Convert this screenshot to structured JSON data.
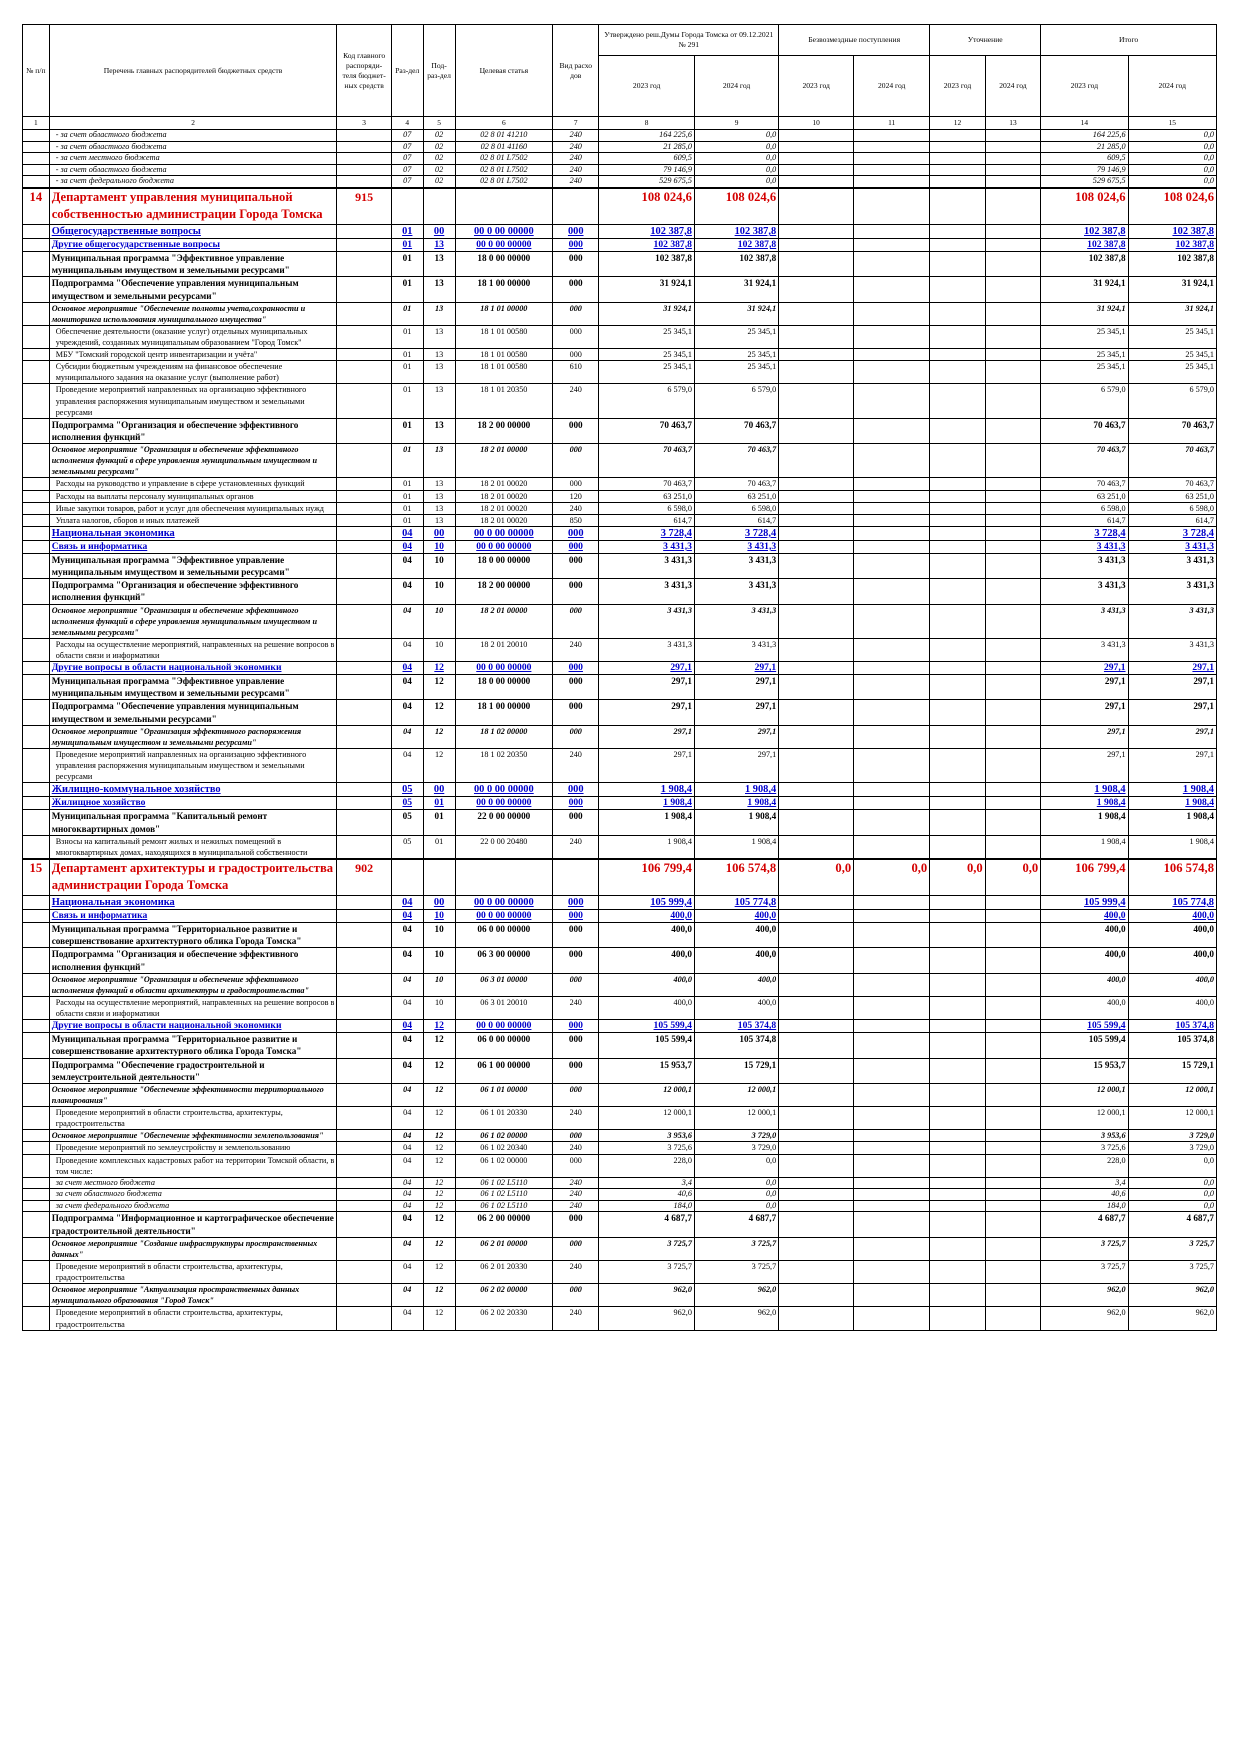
{
  "header": {
    "num": "№ п/п",
    "name": "Перечень главных распорядителей бюджетных средств",
    "grbs": "Код главного распоряди-теля бюджет-ных средств",
    "razdel": "Раз-дел",
    "podrazdel": "Под-раз-дел",
    "csr": "Целевая статья",
    "vr": "Вид расхо дов",
    "group_approved": "Утверждено реш.Думы Города Томска от 09.12.2021 № 291",
    "group_free": "Безвозмездные поступления",
    "group_refine": "Уточнение",
    "group_total": "Итого",
    "year_2023": "2023 год",
    "year_2024": "2024 год",
    "colnums": [
      "1",
      "2",
      "3",
      "4",
      "5",
      "6",
      "7",
      "8",
      "9",
      "10",
      "11",
      "12",
      "13",
      "14",
      "15"
    ]
  },
  "rows": [
    {
      "lvl": "src",
      "name": "- за счет областного бюджета",
      "rz": "07",
      "pr": "02",
      "csr": "02 8 01 41210",
      "vr": "240",
      "a23": "164 225,6",
      "a24": "0,0",
      "t23": "164 225,6",
      "t24": "0,0"
    },
    {
      "lvl": "src",
      "name": "- за счет областного бюджета",
      "rz": "07",
      "pr": "02",
      "csr": "02 8 01 41160",
      "vr": "240",
      "a23": "21 285,0",
      "a24": "0,0",
      "t23": "21 285,0",
      "t24": "0,0"
    },
    {
      "lvl": "src",
      "name": "- за счет местного бюджета",
      "rz": "07",
      "pr": "02",
      "csr": "02 8 01 L7502",
      "vr": "240",
      "a23": "609,5",
      "a24": "0,0",
      "t23": "609,5",
      "t24": "0,0"
    },
    {
      "lvl": "src",
      "name": "- за счет областного бюджета",
      "rz": "07",
      "pr": "02",
      "csr": "02 8 01 L7502",
      "vr": "240",
      "a23": "79 146,9",
      "a24": "0,0",
      "t23": "79 146,9",
      "t24": "0,0"
    },
    {
      "lvl": "src",
      "name": "- за счет федерального бюджета",
      "rz": "07",
      "pr": "02",
      "csr": "02 8 01 L7502",
      "vr": "240",
      "a23": "529 675,5",
      "a24": "0,0",
      "t23": "529 675,5",
      "t24": "0,0"
    },
    {
      "lvl": "dept",
      "num": "14",
      "name": "Департамент управления муниципальной собственностью администрации Города Томска",
      "grbs": "915",
      "a23": "108 024,6",
      "a24": "108 024,6",
      "t23": "108 024,6",
      "t24": "108 024,6"
    },
    {
      "lvl": "sec",
      "name": "Общегосударственные вопросы",
      "rz": "01",
      "pr": "00",
      "csr": "00 0 00 00000",
      "vr": "000",
      "a23": "102 387,8",
      "a24": "102 387,8",
      "t23": "102 387,8",
      "t24": "102 387,8"
    },
    {
      "lvl": "sub",
      "name": "Другие общегосударственные вопросы",
      "rz": "01",
      "pr": "13",
      "csr": "00 0 00 00000",
      "vr": "000",
      "a23": "102 387,8",
      "a24": "102 387,8",
      "t23": "102 387,8",
      "t24": "102 387,8"
    },
    {
      "lvl": "prog",
      "name": "Муниципальная программа \"Эффективное управление муниципальным имуществом и земельными ресурсами\"",
      "rz": "01",
      "pr": "13",
      "csr": "18 0 00 00000",
      "vr": "000",
      "a23": "102 387,8",
      "a24": "102 387,8",
      "t23": "102 387,8",
      "t24": "102 387,8"
    },
    {
      "lvl": "prog",
      "name": "Подпрограмма \"Обеспечение управления муниципальным имуществом и земельными ресурсами\"",
      "rz": "01",
      "pr": "13",
      "csr": "18 1 00 00000",
      "vr": "000",
      "a23": "31 924,1",
      "a24": "31 924,1",
      "t23": "31 924,1",
      "t24": "31 924,1"
    },
    {
      "lvl": "main",
      "name": "Основное мероприятие \"Обеспечение полноты учета,сохранности и мониторинга использования муниципального имущества\"",
      "rz": "01",
      "pr": "13",
      "csr": "18 1 01 00000",
      "vr": "000",
      "a23": "31 924,1",
      "a24": "31 924,1",
      "t23": "31 924,1",
      "t24": "31 924,1"
    },
    {
      "lvl": "item",
      "name": "Обеспечение деятельности (оказание услуг) отдельных муниципальных учреждений, созданных муниципальным образованием \"Город Томск\"",
      "rz": "01",
      "pr": "13",
      "csr": "18 1 01 00580",
      "vr": "000",
      "a23": "25 345,1",
      "a24": "25 345,1",
      "t23": "25 345,1",
      "t24": "25 345,1"
    },
    {
      "lvl": "item",
      "name": "МБУ \"Томский городской центр инвентаризации и учёта\"",
      "rz": "01",
      "pr": "13",
      "csr": "18 1 01 00580",
      "vr": "000",
      "a23": "25 345,1",
      "a24": "25 345,1",
      "t23": "25 345,1",
      "t24": "25 345,1"
    },
    {
      "lvl": "item",
      "name": "Субсидии бюджетным учреждениям на финансовое обеспечение муниципального задания на оказание услуг (выполнение работ)",
      "rz": "01",
      "pr": "13",
      "csr": "18 1 01 00580",
      "vr": "610",
      "a23": "25 345,1",
      "a24": "25 345,1",
      "t23": "25 345,1",
      "t24": "25 345,1"
    },
    {
      "lvl": "item",
      "name": "Проведение мероприятий направленных на организацию эффективного управления распоряжения муниципальным имуществом и земельными ресурсами",
      "rz": "01",
      "pr": "13",
      "csr": "18 1 01 20350",
      "vr": "240",
      "a23": "6 579,0",
      "a24": "6 579,0",
      "t23": "6 579,0",
      "t24": "6 579,0"
    },
    {
      "lvl": "prog",
      "name": "Подпрограмма \"Организация и обеспечение эффективного исполнения функций\"",
      "rz": "01",
      "pr": "13",
      "csr": "18 2 00 00000",
      "vr": "000",
      "a23": "70 463,7",
      "a24": "70 463,7",
      "t23": "70 463,7",
      "t24": "70 463,7"
    },
    {
      "lvl": "main",
      "name": "Основное мероприятие \"Организация и обеспечение эффективного исполнения функций в сфере управления муниципальным имуществом и земельными ресурсами\"",
      "rz": "01",
      "pr": "13",
      "csr": "18 2 01 00000",
      "vr": "000",
      "a23": "70 463,7",
      "a24": "70 463,7",
      "t23": "70 463,7",
      "t24": "70 463,7"
    },
    {
      "lvl": "item",
      "name": "Расходы на руководство и управление в сфере установленных функций",
      "rz": "01",
      "pr": "13",
      "csr": "18 2 01 00020",
      "vr": "000",
      "a23": "70 463,7",
      "a24": "70 463,7",
      "t23": "70 463,7",
      "t24": "70 463,7"
    },
    {
      "lvl": "item",
      "name": "Расходы на выплаты персоналу муниципальных органов",
      "rz": "01",
      "pr": "13",
      "csr": "18 2 01 00020",
      "vr": "120",
      "a23": "63 251,0",
      "a24": "63 251,0",
      "t23": "63 251,0",
      "t24": "63 251,0"
    },
    {
      "lvl": "item",
      "name": "Иные закупки товаров, работ и услуг для обеспечения муниципальных нужд",
      "rz": "01",
      "pr": "13",
      "csr": "18 2 01 00020",
      "vr": "240",
      "a23": "6 598,0",
      "a24": "6 598,0",
      "t23": "6 598,0",
      "t24": "6 598,0"
    },
    {
      "lvl": "item",
      "name": "Уплата налогов, сборов и иных платежей",
      "rz": "01",
      "pr": "13",
      "csr": "18 2 01 00020",
      "vr": "850",
      "a23": "614,7",
      "a24": "614,7",
      "t23": "614,7",
      "t24": "614,7"
    },
    {
      "lvl": "sec",
      "name": "Национальная экономика",
      "rz": "04",
      "pr": "00",
      "csr": "00 0 00 00000",
      "vr": "000",
      "a23": "3 728,4",
      "a24": "3 728,4",
      "t23": "3 728,4",
      "t24": "3 728,4"
    },
    {
      "lvl": "sub",
      "name": "Связь и информатика",
      "rz": "04",
      "pr": "10",
      "csr": "00 0 00 00000",
      "vr": "000",
      "a23": "3 431,3",
      "a24": "3 431,3",
      "t23": "3 431,3",
      "t24": "3 431,3"
    },
    {
      "lvl": "prog",
      "name": "Муниципальная программа \"Эффективное управление муниципальным имуществом и земельными ресурсами\"",
      "rz": "04",
      "pr": "10",
      "csr": "18 0 00 00000",
      "vr": "000",
      "a23": "3 431,3",
      "a24": "3 431,3",
      "t23": "3 431,3",
      "t24": "3 431,3"
    },
    {
      "lvl": "prog",
      "name": "Подпрограмма \"Организация и обеспечение эффективного исполнения функций\"",
      "rz": "04",
      "pr": "10",
      "csr": "18 2 00 00000",
      "vr": "000",
      "a23": "3 431,3",
      "a24": "3 431,3",
      "t23": "3 431,3",
      "t24": "3 431,3"
    },
    {
      "lvl": "main",
      "name": "Основное мероприятие \"Организация и обеспечение эффективного исполнения функций в сфере управления муниципальным имуществом и земельными ресурсами\"",
      "rz": "04",
      "pr": "10",
      "csr": "18 2 01 00000",
      "vr": "000",
      "a23": "3 431,3",
      "a24": "3 431,3",
      "t23": "3 431,3",
      "t24": "3 431,3"
    },
    {
      "lvl": "item",
      "name": "Расходы на осуществление мероприятий, направленных на решение вопросов в области связи и информатики",
      "rz": "04",
      "pr": "10",
      "csr": "18 2 01 20010",
      "vr": "240",
      "a23": "3 431,3",
      "a24": "3 431,3",
      "t23": "3 431,3",
      "t24": "3 431,3"
    },
    {
      "lvl": "sub",
      "name": "Другие вопросы в области национальной экономики",
      "rz": "04",
      "pr": "12",
      "csr": "00 0 00 00000",
      "vr": "000",
      "a23": "297,1",
      "a24": "297,1",
      "t23": "297,1",
      "t24": "297,1"
    },
    {
      "lvl": "prog",
      "name": "Муниципальная программа \"Эффективное управление муниципальным имуществом и земельными ресурсами\"",
      "rz": "04",
      "pr": "12",
      "csr": "18 0 00 00000",
      "vr": "000",
      "a23": "297,1",
      "a24": "297,1",
      "t23": "297,1",
      "t24": "297,1"
    },
    {
      "lvl": "prog",
      "name": "Подпрограмма \"Обеспечение управления муниципальным имуществом и земельными ресурсами\"",
      "rz": "04",
      "pr": "12",
      "csr": "18 1 00 00000",
      "vr": "000",
      "a23": "297,1",
      "a24": "297,1",
      "t23": "297,1",
      "t24": "297,1"
    },
    {
      "lvl": "main",
      "name": "Основное мероприятие \"Организация эффективного распоряжения муниципальным имуществом и земельными ресурсами\"",
      "rz": "04",
      "pr": "12",
      "csr": "18 1 02 00000",
      "vr": "000",
      "a23": "297,1",
      "a24": "297,1",
      "t23": "297,1",
      "t24": "297,1"
    },
    {
      "lvl": "item",
      "name": "Проведение мероприятий направленных на организацию эффективного управления распоряжения муниципальным имуществом и земельными ресурсами",
      "rz": "04",
      "pr": "12",
      "csr": "18 1 02 20350",
      "vr": "240",
      "a23": "297,1",
      "a24": "297,1",
      "t23": "297,1",
      "t24": "297,1"
    },
    {
      "lvl": "sec",
      "name": "Жилищно-коммунальное хозяйство",
      "rz": "05",
      "pr": "00",
      "csr": "00 0 00 00000",
      "vr": "000",
      "a23": "1 908,4",
      "a24": "1 908,4",
      "t23": "1 908,4",
      "t24": "1 908,4"
    },
    {
      "lvl": "sub",
      "name": "Жилищное хозяйство",
      "rz": "05",
      "pr": "01",
      "csr": "00 0 00 00000",
      "vr": "000",
      "a23": "1 908,4",
      "a24": "1 908,4",
      "t23": "1 908,4",
      "t24": "1 908,4"
    },
    {
      "lvl": "prog",
      "name": "Муниципальная программа \"Капитальный ремонт многоквартирных домов\"",
      "rz": "05",
      "pr": "01",
      "csr": "22 0 00 00000",
      "vr": "000",
      "a23": "1 908,4",
      "a24": "1 908,4",
      "t23": "1 908,4",
      "t24": "1 908,4"
    },
    {
      "lvl": "item",
      "name": "Взносы на капитальный ремонт жилых и нежилых помещений в многоквартирных домах, находящихся в муниципальной собственности",
      "rz": "05",
      "pr": "01",
      "csr": "22 0 00 20480",
      "vr": "240",
      "a23": "1 908,4",
      "a24": "1 908,4",
      "t23": "1 908,4",
      "t24": "1 908,4"
    },
    {
      "lvl": "dept",
      "num": "15",
      "name": "Департамент архитектуры и градостроительства администрации Города Томска",
      "grbs": "902",
      "a23": "106 799,4",
      "a24": "106 574,8",
      "f23": "0,0",
      "f24": "0,0",
      "u23": "0,0",
      "u24": "0,0",
      "t23": "106 799,4",
      "t24": "106 574,8"
    },
    {
      "lvl": "sec",
      "name": "Национальная экономика",
      "rz": "04",
      "pr": "00",
      "csr": "00 0 00 00000",
      "vr": "000",
      "a23": "105 999,4",
      "a24": "105 774,8",
      "t23": "105 999,4",
      "t24": "105 774,8"
    },
    {
      "lvl": "sub",
      "name": "Связь и информатика",
      "rz": "04",
      "pr": "10",
      "csr": "00 0 00 00000",
      "vr": "000",
      "a23": "400,0",
      "a24": "400,0",
      "t23": "400,0",
      "t24": "400,0"
    },
    {
      "lvl": "prog",
      "name": "Муниципальная программа \"Территориальное развитие и совершенствование архитектурного облика Города Томска\"",
      "rz": "04",
      "pr": "10",
      "csr": "06 0 00 00000",
      "vr": "000",
      "a23": "400,0",
      "a24": "400,0",
      "t23": "400,0",
      "t24": "400,0"
    },
    {
      "lvl": "prog",
      "name": "Подпрограмма \"Организация и обеспечение эффективного исполнения функций\"",
      "rz": "04",
      "pr": "10",
      "csr": "06 3 00 00000",
      "vr": "000",
      "a23": "400,0",
      "a24": "400,0",
      "t23": "400,0",
      "t24": "400,0"
    },
    {
      "lvl": "main",
      "name": "Основное мероприятие \"Организация и обеспечение эффективного исполнения функций в области архитектуры и градостроительства\"",
      "rz": "04",
      "pr": "10",
      "csr": "06 3 01 00000",
      "vr": "000",
      "a23": "400,0",
      "a24": "400,0",
      "t23": "400,0",
      "t24": "400,0"
    },
    {
      "lvl": "item",
      "name": "Расходы на осуществление мероприятий, направленных на решение вопросов в области связи и информатики",
      "rz": "04",
      "pr": "10",
      "csr": "06 3 01 20010",
      "vr": "240",
      "a23": "400,0",
      "a24": "400,0",
      "t23": "400,0",
      "t24": "400,0"
    },
    {
      "lvl": "sub",
      "name": "Другие вопросы в области национальной экономики",
      "rz": "04",
      "pr": "12",
      "csr": "00 0 00 00000",
      "vr": "000",
      "a23": "105 599,4",
      "a24": "105 374,8",
      "t23": "105 599,4",
      "t24": "105 374,8"
    },
    {
      "lvl": "prog",
      "name": "Муниципальная программа \"Территориальное развитие и совершенствование архитектурного облика Города Томска\"",
      "rz": "04",
      "pr": "12",
      "csr": "06 0 00 00000",
      "vr": "000",
      "a23": "105 599,4",
      "a24": "105 374,8",
      "t23": "105 599,4",
      "t24": "105 374,8"
    },
    {
      "lvl": "prog",
      "name": "Подпрограмма \"Обеспечение градостроительной и землеустроительной деятельности\"",
      "rz": "04",
      "pr": "12",
      "csr": "06 1 00 00000",
      "vr": "000",
      "a23": "15 953,7",
      "a24": "15 729,1",
      "t23": "15 953,7",
      "t24": "15 729,1"
    },
    {
      "lvl": "main",
      "name": "Основное мероприятие \"Обеспечение эффективности территориального планирования\"",
      "rz": "04",
      "pr": "12",
      "csr": "06 1 01 00000",
      "vr": "000",
      "a23": "12 000,1",
      "a24": "12 000,1",
      "t23": "12 000,1",
      "t24": "12 000,1"
    },
    {
      "lvl": "item",
      "name": "Проведение мероприятий в области строительства, архитектуры, градостроительства",
      "rz": "04",
      "pr": "12",
      "csr": "06 1 01 20330",
      "vr": "240",
      "a23": "12 000,1",
      "a24": "12 000,1",
      "t23": "12 000,1",
      "t24": "12 000,1"
    },
    {
      "lvl": "main",
      "name": "Основное мероприятие \"Обеспечение эффективности землепользования\"",
      "rz": "04",
      "pr": "12",
      "csr": "06 1 02 00000",
      "vr": "000",
      "a23": "3 953,6",
      "a24": "3 729,0",
      "t23": "3 953,6",
      "t24": "3 729,0"
    },
    {
      "lvl": "item",
      "name": "Проведение мероприятий по землеустройству и землепользованию",
      "rz": "04",
      "pr": "12",
      "csr": "06 1 02 20340",
      "vr": "240",
      "a23": "3 725,6",
      "a24": "3 729,0",
      "t23": "3 725,6",
      "t24": "3 729,0"
    },
    {
      "lvl": "item",
      "name": "Проведение комплексных кадастровых работ на территории Томской области, в том числе:",
      "rz": "04",
      "pr": "12",
      "csr": "06 1 02 00000",
      "vr": "000",
      "a23": "228,0",
      "a24": "0,0",
      "t23": "228,0",
      "t24": "0,0"
    },
    {
      "lvl": "src",
      "name": "за счет местного бюджета",
      "rz": "04",
      "pr": "12",
      "csr": "06 1 02 L5110",
      "vr": "240",
      "a23": "3,4",
      "a24": "0,0",
      "t23": "3,4",
      "t24": "0,0"
    },
    {
      "lvl": "src",
      "name": "за счет областного бюджета",
      "rz": "04",
      "pr": "12",
      "csr": "06 1 02 L5110",
      "vr": "240",
      "a23": "40,6",
      "a24": "0,0",
      "t23": "40,6",
      "t24": "0,0"
    },
    {
      "lvl": "src",
      "name": "за счет федерального бюджета",
      "rz": "04",
      "pr": "12",
      "csr": "06 1 02 L5110",
      "vr": "240",
      "a23": "184,0",
      "a24": "0,0",
      "t23": "184,0",
      "t24": "0,0"
    },
    {
      "lvl": "prog",
      "name": "Подпрограмма \"Информационное и картографическое обеспечение градостроительной деятельности\"",
      "rz": "04",
      "pr": "12",
      "csr": "06 2 00 00000",
      "vr": "000",
      "a23": "4 687,7",
      "a24": "4 687,7",
      "t23": "4 687,7",
      "t24": "4 687,7"
    },
    {
      "lvl": "main",
      "name": "Основное мероприятие \"Создание инфраструктуры пространственных данных\"",
      "rz": "04",
      "pr": "12",
      "csr": "06 2 01 00000",
      "vr": "000",
      "a23": "3 725,7",
      "a24": "3 725,7",
      "t23": "3 725,7",
      "t24": "3 725,7"
    },
    {
      "lvl": "item",
      "name": "Проведение мероприятий в области строительства, архитектуры, градостроительства",
      "rz": "04",
      "pr": "12",
      "csr": "06 2 01 20330",
      "vr": "240",
      "a23": "3 725,7",
      "a24": "3 725,7",
      "t23": "3 725,7",
      "t24": "3 725,7"
    },
    {
      "lvl": "main",
      "name": "Основное мероприятие \"Актуализация пространственных данных муниципального образования \"Город Томск\"",
      "rz": "04",
      "pr": "12",
      "csr": "06 2 02 00000",
      "vr": "000",
      "a23": "962,0",
      "a24": "962,0",
      "t23": "962,0",
      "t24": "962,0"
    },
    {
      "lvl": "item",
      "name": "Проведение мероприятий в области строительства, архитектуры, градостроительства",
      "rz": "04",
      "pr": "12",
      "csr": "06 2 02 20330",
      "vr": "240",
      "a23": "962,0",
      "a24": "962,0",
      "t23": "962,0",
      "t24": "962,0"
    }
  ]
}
